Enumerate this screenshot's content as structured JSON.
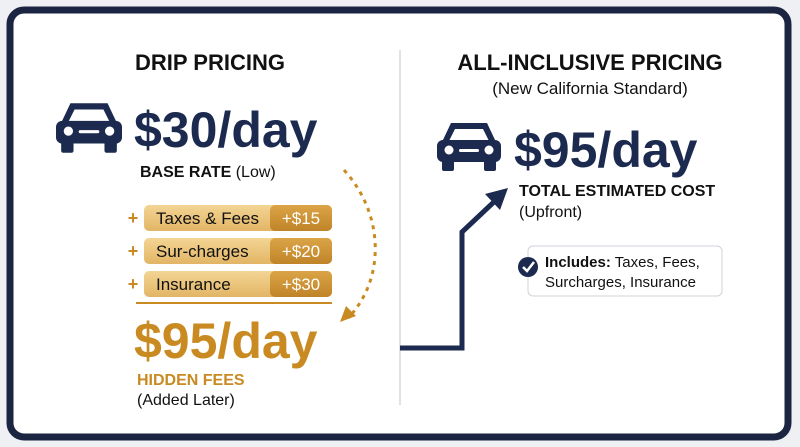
{
  "left": {
    "title": "DRIP PRICING",
    "price": "$30/day",
    "base_rate_label": "BASE RATE",
    "base_rate_note": "(Low)",
    "fees": [
      {
        "name": "Taxes & Fees",
        "amount": "+$15"
      },
      {
        "name": "Sur-charges",
        "amount": "+$20"
      },
      {
        "name": "Insurance",
        "amount": "+$30"
      }
    ],
    "total": "$95/day",
    "hidden_label": "HIDDEN FEES",
    "hidden_note": "(Added Later)"
  },
  "right": {
    "title": "ALL-INCLUSIVE PRICING",
    "subtitle": "(New California Standard)",
    "price": "$95/day",
    "total_label": "TOTAL ESTIMATED COST",
    "total_note": "(Upfront)",
    "includes_label": "Includes:",
    "includes_lines": [
      "Taxes, Fees,",
      "Surcharges, Insurance"
    ]
  }
}
